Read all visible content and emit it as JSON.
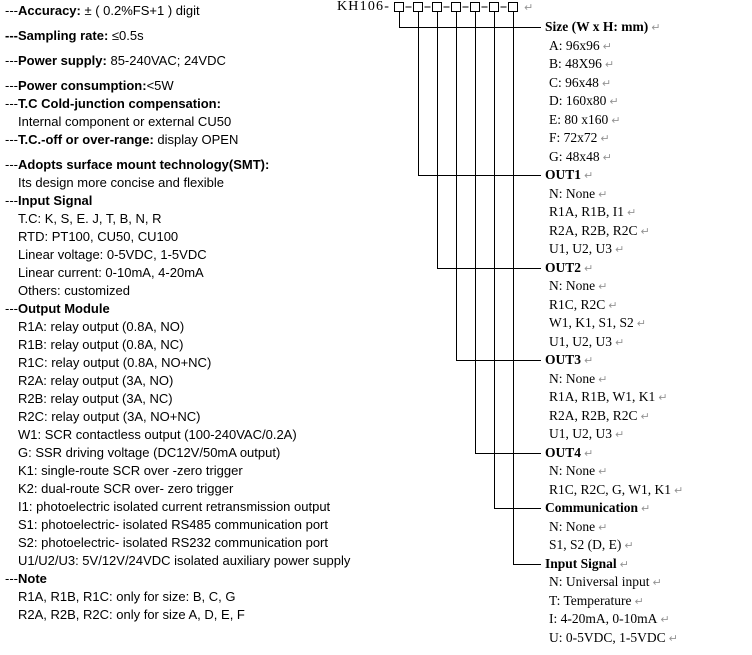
{
  "code_line": {
    "model": "KH106-",
    "separator": "-",
    "box_count": 7
  },
  "marks": {
    "return_mark": "↵"
  },
  "colors": {
    "text": "#000000",
    "return_mark": "#949494",
    "line": "#000000",
    "background": "#ffffff"
  },
  "specs": [
    {
      "pre": "---",
      "b": "Accuracy:",
      "t": " ± ( 0.2%FS+1 )  digit"
    },
    {
      "b": "---Sampling rate:",
      "t": " ≤0.5s",
      "gap": true
    },
    {
      "pre": "---",
      "b": "Power supply:",
      "t": " 85-240VAC; 24VDC",
      "gap": true
    },
    {
      "pre": "---",
      "b": "Power consumption:",
      "t": "<5W",
      "gap": true
    },
    {
      "pre": "---",
      "b": "T.C Cold-junction compensation:",
      "t": ""
    },
    {
      "t": "Internal component or external CU50",
      "ind": true
    },
    {
      "pre": "---",
      "b": "T.C.-off or over-range:",
      "t": " display OPEN"
    },
    {
      "pre": "---",
      "b": "Adopts surface mount technology(SMT):",
      "t": "",
      "gap": true
    },
    {
      "t": "Its design more concise and flexible",
      "ind": true
    },
    {
      "pre": "---",
      "b": "Input Signal",
      "t": ""
    },
    {
      "t": "T.C: K, S, E. J, T, B, N, R",
      "ind": true
    },
    {
      "t": "RTD: PT100, CU50, CU100",
      "ind": true
    },
    {
      "t": "Linear voltage: 0-5VDC, 1-5VDC",
      "ind": true
    },
    {
      "t": "Linear current: 0-10mA, 4-20mA",
      "ind": true
    },
    {
      "t": "Others: customized",
      "ind": true
    },
    {
      "pre": "---",
      "b": "Output Module",
      "t": ""
    },
    {
      "t": "R1A: relay output (0.8A, NO)",
      "ind": true
    },
    {
      "t": "R1B: relay output (0.8A, NC)",
      "ind": true
    },
    {
      "t": "R1C: relay output (0.8A, NO+NC)",
      "ind": true
    },
    {
      "t": "R2A: relay output (3A, NO)",
      "ind": true
    },
    {
      "t": "R2B: relay output (3A, NC)",
      "ind": true
    },
    {
      "t": "R2C: relay output (3A, NO+NC)",
      "ind": true
    },
    {
      "t": "W1: SCR contactless output (100-240VAC/0.2A)",
      "ind": true
    },
    {
      "t": "G: SSR driving voltage (DC12V/50mA output)",
      "ind": true
    },
    {
      "t": "K1: single-route SCR over -zero trigger",
      "ind": true
    },
    {
      "t": "K2: dual-route SCR over- zero trigger",
      "ind": true
    },
    {
      "t": "I1: photoelectric isolated current retransmission output",
      "ind": true
    },
    {
      "t": "S1: photoelectric- isolated RS485 communication port",
      "ind": true
    },
    {
      "t": "S2: photoelectric- isolated RS232 communication port",
      "ind": true
    },
    {
      "t": "U1/U2/U3: 5V/12V/24VDC isolated auxiliary power supply",
      "ind": true
    },
    {
      "pre": "---",
      "b": "Note",
      "t": ""
    },
    {
      "t": "R1A, R1B, R1C: only for size: B, C, G",
      "ind": true
    },
    {
      "t": "R2A, R2B, R2C: only for size A, D, E, F",
      "ind": true
    }
  ],
  "order_groups": [
    {
      "label": "Size (W x H: mm)",
      "items": [
        "A: 96x96",
        "B: 48X96",
        "C: 96x48",
        "D: 160x80",
        "E: 80 x160",
        "F: 72x72",
        "G: 48x48"
      ]
    },
    {
      "label": "OUT1",
      "items": [
        "N: None",
        "R1A, R1B, I1",
        "R2A, R2B, R2C",
        "U1, U2, U3"
      ]
    },
    {
      "label": "OUT2",
      "items": [
        "N: None",
        "R1C, R2C",
        "W1, K1, S1, S2",
        "U1, U2, U3"
      ]
    },
    {
      "label": "OUT3",
      "items": [
        "N: None",
        "R1A, R1B, W1, K1",
        "R2A, R2B, R2C",
        "U1, U2, U3"
      ]
    },
    {
      "label": "OUT4",
      "items": [
        "N: None",
        "R1C, R2C, G, W1, K1"
      ]
    },
    {
      "label": "Communication",
      "items": [
        "N: None",
        "S1, S2 (D, E)"
      ]
    },
    {
      "label": "Input Signal",
      "items": [
        "N: Universal input",
        "T: Temperature",
        "I: 4-20mA, 0-10mA",
        "U: 0-5VDC, 1-5VDC"
      ]
    }
  ]
}
